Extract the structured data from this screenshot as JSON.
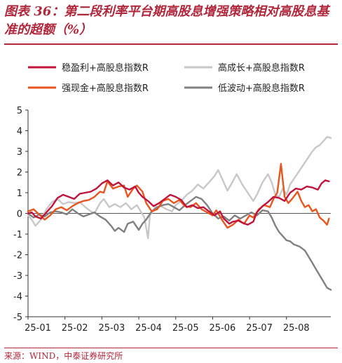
{
  "header": {
    "title": "图表 36：第二段利率平台期高股息增强策略相对高股息基准的超额（%）"
  },
  "footer": {
    "source": "来源：WIND，中泰证券研究所"
  },
  "colors": {
    "brand": "#b0263a",
    "series": [
      "#c0143c",
      "#c8c8c8",
      "#e8551e",
      "#808080"
    ]
  },
  "chart_data": {
    "type": "line",
    "title": "",
    "xlabel": "",
    "ylabel": "",
    "ylim": [
      -5,
      5
    ],
    "yticks": [
      5,
      4,
      3,
      2,
      1,
      0,
      -1,
      -2,
      -3,
      -4,
      -5
    ],
    "xticks": [
      "25-01",
      "25-02",
      "25-03",
      "25-04",
      "25-05",
      "25-06",
      "25-07",
      "25-08"
    ],
    "xlim": [
      0,
      8.2
    ],
    "legend_position": "top",
    "series": [
      {
        "name": "稳盈利+高股息指数R",
        "color": "#c0143c",
        "points": [
          [
            0.0,
            0.0
          ],
          [
            0.1,
            0.05
          ],
          [
            0.2,
            -0.15
          ],
          [
            0.35,
            -0.25
          ],
          [
            0.5,
            0.05
          ],
          [
            0.65,
            0.35
          ],
          [
            0.8,
            0.75
          ],
          [
            0.95,
            0.9
          ],
          [
            1.1,
            0.8
          ],
          [
            1.25,
            0.7
          ],
          [
            1.4,
            0.95
          ],
          [
            1.55,
            1.0
          ],
          [
            1.7,
            1.05
          ],
          [
            1.85,
            1.2
          ],
          [
            2.0,
            1.45
          ],
          [
            2.15,
            1.6
          ],
          [
            2.3,
            1.35
          ],
          [
            2.45,
            1.5
          ],
          [
            2.6,
            1.25
          ],
          [
            2.75,
            1.15
          ],
          [
            2.9,
            1.3
          ],
          [
            3.0,
            1.0
          ],
          [
            3.1,
            0.8
          ],
          [
            3.25,
            0.6
          ],
          [
            3.4,
            0.35
          ],
          [
            3.55,
            0.5
          ],
          [
            3.7,
            0.7
          ],
          [
            3.85,
            0.9
          ],
          [
            4.0,
            0.8
          ],
          [
            4.15,
            0.65
          ],
          [
            4.3,
            0.3
          ],
          [
            4.45,
            0.4
          ],
          [
            4.6,
            0.25
          ],
          [
            4.75,
            0.3
          ],
          [
            4.9,
            0.1
          ],
          [
            5.05,
            -0.1
          ],
          [
            5.2,
            0.1
          ],
          [
            5.3,
            -0.25
          ],
          [
            5.45,
            -0.5
          ],
          [
            5.55,
            -0.4
          ],
          [
            5.7,
            -0.35
          ],
          [
            5.8,
            -0.45
          ],
          [
            5.95,
            -0.55
          ],
          [
            6.1,
            -0.4
          ],
          [
            6.2,
            0.05
          ],
          [
            6.35,
            0.35
          ],
          [
            6.5,
            0.55
          ],
          [
            6.65,
            0.8
          ],
          [
            6.8,
            0.75
          ],
          [
            6.95,
            0.6
          ],
          [
            7.1,
            1.0
          ],
          [
            7.25,
            1.2
          ],
          [
            7.4,
            1.15
          ],
          [
            7.55,
            1.3
          ],
          [
            7.7,
            1.25
          ],
          [
            7.85,
            1.15
          ],
          [
            7.95,
            1.45
          ],
          [
            8.05,
            1.6
          ],
          [
            8.15,
            1.55
          ]
        ]
      },
      {
        "name": "高成长+高股息指数R",
        "color": "#c8c8c8",
        "points": [
          [
            0.0,
            -0.1
          ],
          [
            0.1,
            -0.3
          ],
          [
            0.2,
            -0.6
          ],
          [
            0.35,
            -0.3
          ],
          [
            0.5,
            0.2
          ],
          [
            0.65,
            0.55
          ],
          [
            0.8,
            0.7
          ],
          [
            0.95,
            0.45
          ],
          [
            1.1,
            0.55
          ],
          [
            1.25,
            0.5
          ],
          [
            1.4,
            0.55
          ],
          [
            1.55,
            0.3
          ],
          [
            1.7,
            0.1
          ],
          [
            1.8,
            0.0
          ],
          [
            1.95,
            0.5
          ],
          [
            2.05,
            0.7
          ],
          [
            2.2,
            0.3
          ],
          [
            2.35,
            0.45
          ],
          [
            2.5,
            0.3
          ],
          [
            2.65,
            0.5
          ],
          [
            2.8,
            0.2
          ],
          [
            2.95,
            0.4
          ],
          [
            3.05,
            0.1
          ],
          [
            3.15,
            -0.2
          ],
          [
            3.25,
            -1.2
          ],
          [
            3.3,
            -0.1
          ],
          [
            3.45,
            0.3
          ],
          [
            3.6,
            0.35
          ],
          [
            3.75,
            0.2
          ],
          [
            3.9,
            0.1
          ],
          [
            4.0,
            0.4
          ],
          [
            4.15,
            0.6
          ],
          [
            4.3,
            0.9
          ],
          [
            4.45,
            1.1
          ],
          [
            4.6,
            1.4
          ],
          [
            4.75,
            1.2
          ],
          [
            4.9,
            1.5
          ],
          [
            5.05,
            1.8
          ],
          [
            5.15,
            2.1
          ],
          [
            5.25,
            1.7
          ],
          [
            5.4,
            1.1
          ],
          [
            5.5,
            1.4
          ],
          [
            5.65,
            1.9
          ],
          [
            5.8,
            1.4
          ],
          [
            5.95,
            1.0
          ],
          [
            6.1,
            0.6
          ],
          [
            6.2,
            0.9
          ],
          [
            6.35,
            1.5
          ],
          [
            6.5,
            1.9
          ],
          [
            6.6,
            1.5
          ],
          [
            6.7,
            0.9
          ],
          [
            6.8,
            0.8
          ],
          [
            6.9,
            1.2
          ],
          [
            7.0,
            0.9
          ],
          [
            7.1,
            1.4
          ],
          [
            7.25,
            1.8
          ],
          [
            7.4,
            2.2
          ],
          [
            7.55,
            2.6
          ],
          [
            7.7,
            3.0
          ],
          [
            7.8,
            3.2
          ],
          [
            7.9,
            3.3
          ],
          [
            8.0,
            3.5
          ],
          [
            8.1,
            3.7
          ],
          [
            8.2,
            3.65
          ]
        ]
      },
      {
        "name": "强现金+高股息指数R",
        "color": "#e8551e",
        "points": [
          [
            0.0,
            0.1
          ],
          [
            0.15,
            0.2
          ],
          [
            0.3,
            -0.05
          ],
          [
            0.45,
            -0.3
          ],
          [
            0.6,
            -0.1
          ],
          [
            0.75,
            0.2
          ],
          [
            0.9,
            0.3
          ],
          [
            1.05,
            0.15
          ],
          [
            1.2,
            0.35
          ],
          [
            1.35,
            0.5
          ],
          [
            1.5,
            0.6
          ],
          [
            1.65,
            0.65
          ],
          [
            1.8,
            0.8
          ],
          [
            1.95,
            1.05
          ],
          [
            2.05,
            1.0
          ],
          [
            2.15,
            1.55
          ],
          [
            2.3,
            1.2
          ],
          [
            2.45,
            1.3
          ],
          [
            2.6,
            1.35
          ],
          [
            2.7,
            0.8
          ],
          [
            2.85,
            1.2
          ],
          [
            2.95,
            1.35
          ],
          [
            3.1,
            1.05
          ],
          [
            3.2,
            0.5
          ],
          [
            3.35,
            0.1
          ],
          [
            3.5,
            0.2
          ],
          [
            3.65,
            0.6
          ],
          [
            3.8,
            0.7
          ],
          [
            3.95,
            0.5
          ],
          [
            4.1,
            0.65
          ],
          [
            4.25,
            0.35
          ],
          [
            4.4,
            0.3
          ],
          [
            4.55,
            0.5
          ],
          [
            4.7,
            0.2
          ],
          [
            4.85,
            0.05
          ],
          [
            5.0,
            -0.1
          ],
          [
            5.1,
            0.15
          ],
          [
            5.25,
            -0.3
          ],
          [
            5.4,
            -0.7
          ],
          [
            5.55,
            -0.55
          ],
          [
            5.7,
            -0.3
          ],
          [
            5.85,
            -0.5
          ],
          [
            6.0,
            -0.1
          ],
          [
            6.1,
            -0.2
          ],
          [
            6.25,
            0.2
          ],
          [
            6.4,
            0.4
          ],
          [
            6.55,
            0.3
          ],
          [
            6.65,
            0.7
          ],
          [
            6.75,
            1.0
          ],
          [
            6.85,
            2.4
          ],
          [
            6.95,
            0.8
          ],
          [
            7.05,
            0.5
          ],
          [
            7.15,
            0.7
          ],
          [
            7.3,
            1.05
          ],
          [
            7.4,
            0.6
          ],
          [
            7.5,
            0.3
          ],
          [
            7.6,
            0.4
          ],
          [
            7.7,
            0.1
          ],
          [
            7.8,
            0.2
          ],
          [
            7.9,
            -0.2
          ],
          [
            8.0,
            -0.35
          ],
          [
            8.1,
            -0.55
          ],
          [
            8.15,
            -0.25
          ]
        ]
      },
      {
        "name": "低波动+高股息指数R",
        "color": "#808080",
        "points": [
          [
            0.0,
            0.0
          ],
          [
            0.15,
            -0.2
          ],
          [
            0.3,
            -0.05
          ],
          [
            0.45,
            -0.15
          ],
          [
            0.6,
            0.05
          ],
          [
            0.75,
            0.1
          ],
          [
            0.9,
            0.05
          ],
          [
            1.05,
            -0.05
          ],
          [
            1.2,
            0.2
          ],
          [
            1.35,
            0.0
          ],
          [
            1.5,
            -0.15
          ],
          [
            1.65,
            -0.05
          ],
          [
            1.8,
            0.05
          ],
          [
            1.95,
            -0.15
          ],
          [
            2.1,
            -0.3
          ],
          [
            2.25,
            -0.6
          ],
          [
            2.35,
            -0.85
          ],
          [
            2.45,
            -0.7
          ],
          [
            2.6,
            -0.9
          ],
          [
            2.7,
            -0.5
          ],
          [
            2.85,
            -0.4
          ],
          [
            3.0,
            -0.8
          ],
          [
            3.1,
            -0.5
          ],
          [
            3.2,
            -0.3
          ],
          [
            3.35,
            0.1
          ],
          [
            3.5,
            0.3
          ],
          [
            3.65,
            0.4
          ],
          [
            3.8,
            0.45
          ],
          [
            3.95,
            0.3
          ],
          [
            4.1,
            0.15
          ],
          [
            4.25,
            0.4
          ],
          [
            4.4,
            0.6
          ],
          [
            4.55,
            0.8
          ],
          [
            4.7,
            0.7
          ],
          [
            4.85,
            0.4
          ],
          [
            5.0,
            0.0
          ],
          [
            5.15,
            -0.25
          ],
          [
            5.3,
            -0.15
          ],
          [
            5.45,
            -0.35
          ],
          [
            5.6,
            -0.1
          ],
          [
            5.75,
            -0.25
          ],
          [
            5.9,
            -0.1
          ],
          [
            6.05,
            0.05
          ],
          [
            6.2,
            -0.1
          ],
          [
            6.35,
            0.15
          ],
          [
            6.5,
            0.1
          ],
          [
            6.6,
            -0.2
          ],
          [
            6.7,
            -0.6
          ],
          [
            6.8,
            -0.9
          ],
          [
            6.9,
            -1.1
          ],
          [
            7.0,
            -1.3
          ],
          [
            7.1,
            -1.35
          ],
          [
            7.2,
            -1.5
          ],
          [
            7.35,
            -1.6
          ],
          [
            7.5,
            -1.8
          ],
          [
            7.6,
            -2.1
          ],
          [
            7.7,
            -2.4
          ],
          [
            7.8,
            -2.7
          ],
          [
            7.9,
            -3.0
          ],
          [
            8.0,
            -3.3
          ],
          [
            8.1,
            -3.6
          ],
          [
            8.2,
            -3.7
          ]
        ]
      }
    ]
  }
}
